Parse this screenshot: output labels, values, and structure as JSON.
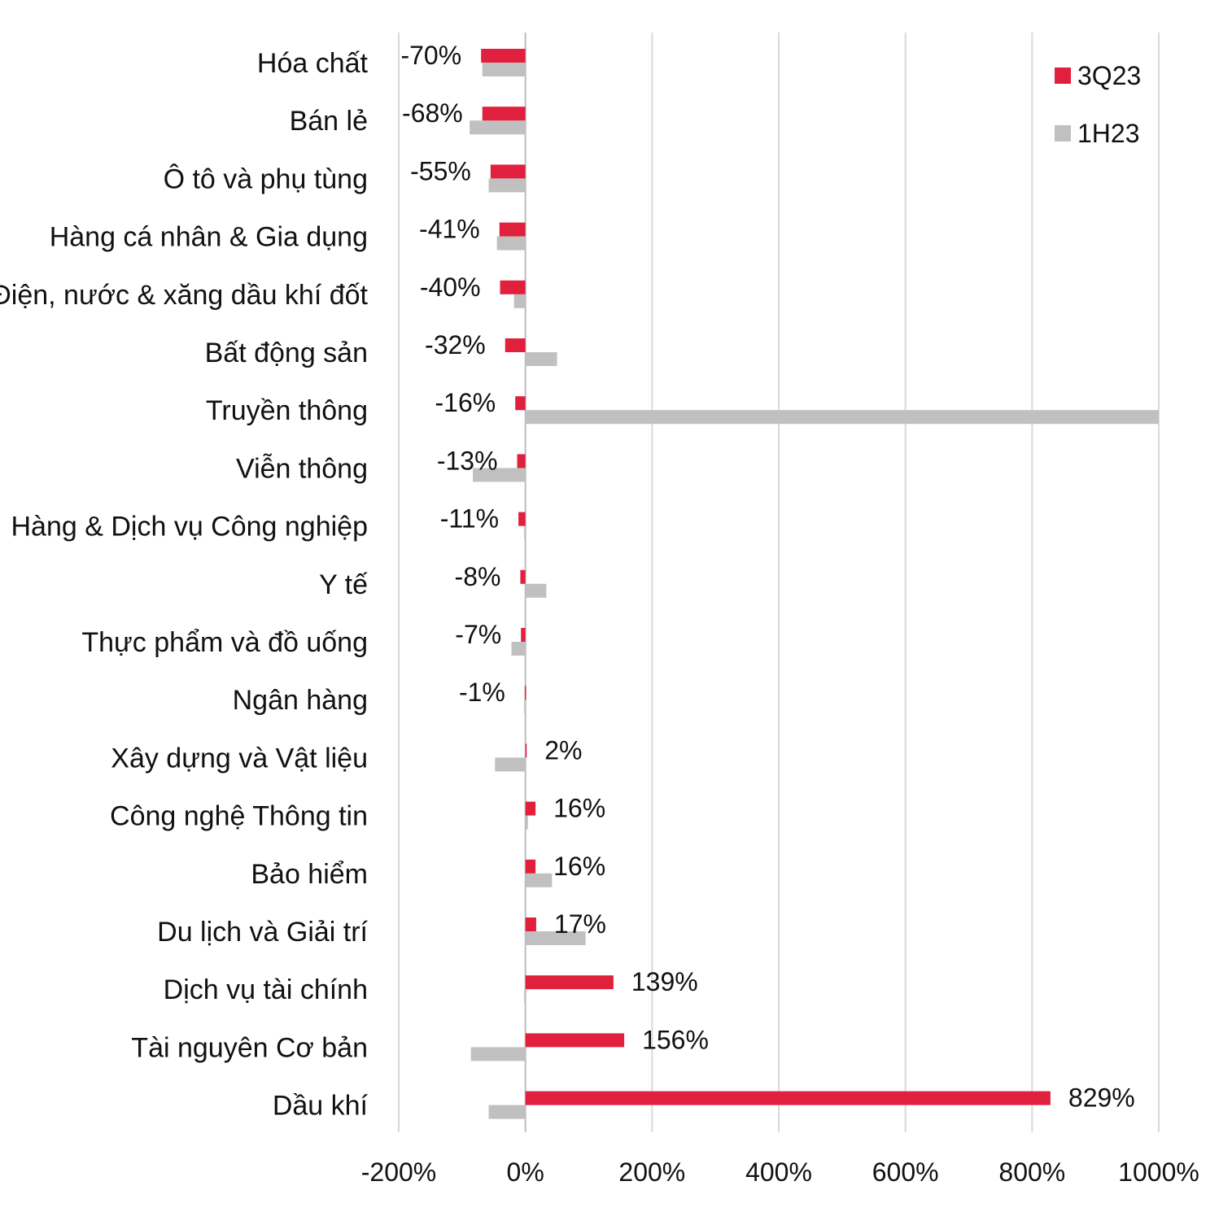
{
  "chart_data": {
    "type": "bar",
    "orientation": "horizontal",
    "categories": [
      "Hóa chất",
      "Bán lẻ",
      "Ô tô và phụ tùng",
      "Hàng cá nhân & Gia dụng",
      "Điện, nước & xăng dầu khí đốt",
      "Bất động sản",
      "Truyền thông",
      "Viễn thông",
      "Hàng & Dịch vụ Công nghiệp",
      "Y tế",
      "Thực phẩm và đồ uống",
      "Ngân hàng",
      "Xây dựng và Vật liệu",
      "Công nghệ Thông tin",
      "Bảo hiểm",
      "Du lịch và Giải trí",
      "Dịch vụ tài chính",
      "Tài nguyên Cơ bản",
      "Dầu khí"
    ],
    "series": [
      {
        "name": "3Q23",
        "color": "#E0203C",
        "values": [
          -70,
          -68,
          -55,
          -41,
          -40,
          -32,
          -16,
          -13,
          -11,
          -8,
          -7,
          -1,
          2,
          16,
          16,
          17,
          139,
          156,
          829
        ],
        "labels": [
          "-70%",
          "-68%",
          "-55%",
          "-41%",
          "-40%",
          "-32%",
          "-16%",
          "-13%",
          "-11%",
          "-8%",
          "-7%",
          "-1%",
          "2%",
          "16%",
          "16%",
          "17%",
          "139%",
          "156%",
          "829%"
        ]
      },
      {
        "name": "1H23",
        "color": "#C0C0C0",
        "values": [
          -68,
          -88,
          -58,
          -45,
          -18,
          50,
          1005,
          -83,
          -2,
          33,
          -22,
          -2,
          -48,
          4,
          42,
          95,
          -2,
          -86,
          -58
        ]
      }
    ],
    "xlim": [
      -200,
      1000
    ],
    "xticks": [
      -200,
      0,
      200,
      400,
      600,
      800,
      1000
    ],
    "xtick_labels": [
      "-200%",
      "0%",
      "200%",
      "400%",
      "600%",
      "800%",
      "1000%"
    ],
    "grid": true,
    "legend_position": "top-right",
    "title": "",
    "xlabel": "",
    "ylabel": ""
  }
}
